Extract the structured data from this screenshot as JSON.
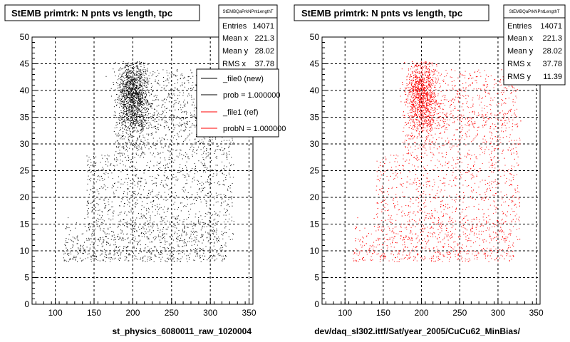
{
  "colors": {
    "left_points": "#000000",
    "right_points": "#ff0000",
    "frame": "#000000",
    "grid": "#000000"
  },
  "chart_data": [
    {
      "type": "scatter",
      "title": "StEMB primtrk: N pnts vs length, tpc",
      "xlabel": "st_physics_6080011_raw_1020004",
      "ylabel": "",
      "xlim": [
        70,
        355
      ],
      "ylim": [
        0,
        50
      ],
      "xticks": [
        "100",
        "150",
        "200",
        "250",
        "300",
        "350"
      ],
      "yticks": [
        "0",
        "5",
        "10",
        "15",
        "20",
        "25",
        "30",
        "35",
        "40",
        "45",
        "50"
      ],
      "grid": true,
      "point_color": "#000000",
      "stats": {
        "name": "StEMBQaPrkNPntLengthT",
        "rows": [
          {
            "label": "Entries",
            "value": "14071"
          },
          {
            "label": "Mean x",
            "value": "221.3"
          },
          {
            "label": "Mean y",
            "value": "28.02"
          },
          {
            "label": "RMS x",
            "value": "37.78"
          }
        ]
      },
      "legend": {
        "placement": "top-right",
        "entries": [
          {
            "label": "_file0 (new)",
            "color": "#000000"
          },
          {
            "label": "prob = 1.000000",
            "color": "#000000"
          },
          {
            "label": "_file1 (ref)",
            "color": "#ff0000"
          },
          {
            "label": "probN = 1.000000",
            "color": "#ff0000"
          }
        ]
      }
    },
    {
      "type": "scatter",
      "title": "StEMB primtrk: N pnts vs length, tpc",
      "xlabel": "dev/daq_sl302.ittf/Sat/year_2005/CuCu62_MinBias/",
      "ylabel": "",
      "xlim": [
        70,
        355
      ],
      "ylim": [
        0,
        50
      ],
      "xticks": [
        "100",
        "150",
        "200",
        "250",
        "300",
        "350"
      ],
      "yticks": [
        "0",
        "5",
        "10",
        "15",
        "20",
        "25",
        "30",
        "35",
        "40",
        "45",
        "50"
      ],
      "grid": true,
      "point_color": "#ff0000",
      "stats": {
        "name": "StEMBQaPrkNPntLengthT",
        "rows": [
          {
            "label": "Entries",
            "value": "14071"
          },
          {
            "label": "Mean x",
            "value": "221.3"
          },
          {
            "label": "Mean y",
            "value": "28.02"
          },
          {
            "label": "RMS x",
            "value": "37.78"
          },
          {
            "label": "RMS y",
            "value": "11.39"
          }
        ]
      }
    }
  ]
}
